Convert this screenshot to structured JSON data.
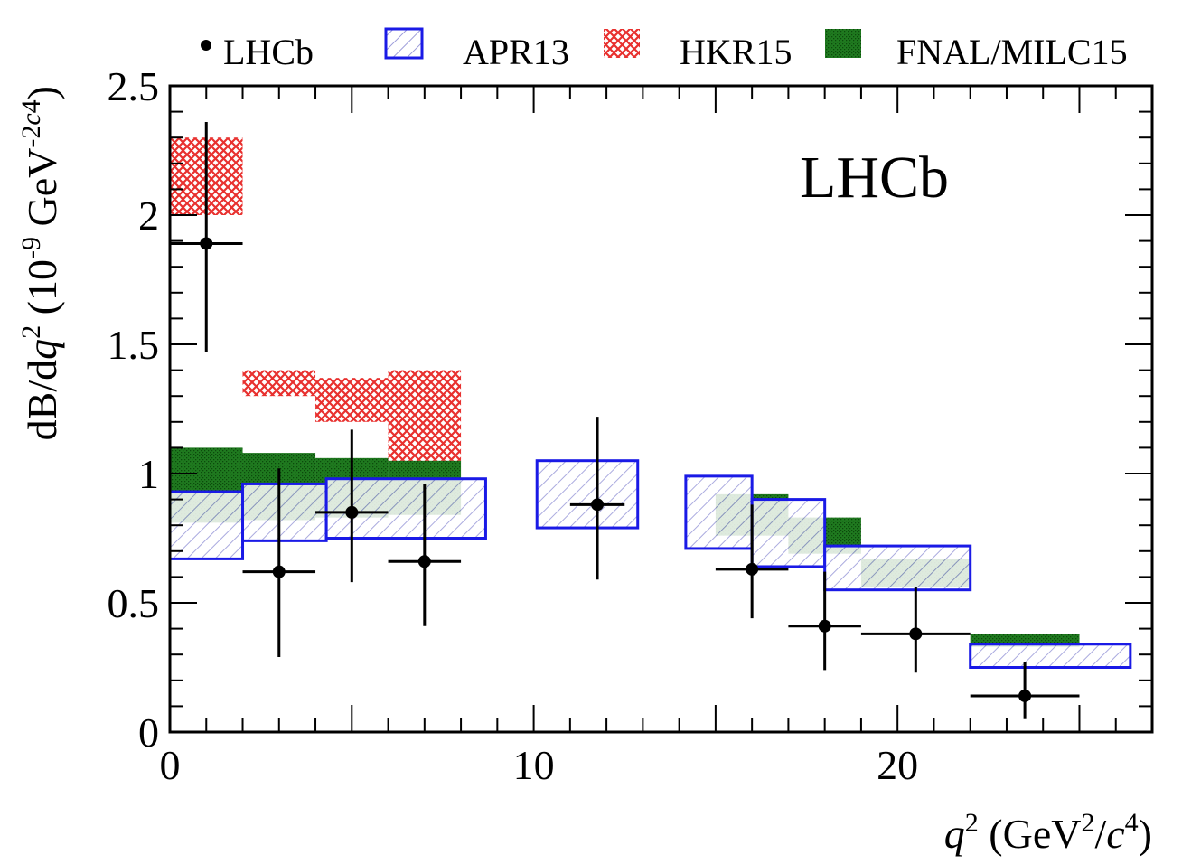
{
  "chart_data": {
    "type": "bar",
    "annotation": "LHCb",
    "xlim": [
      0,
      27
    ],
    "ylim": [
      0,
      2.5
    ],
    "x_ticks": [
      {
        "value": 0,
        "label": "0"
      },
      {
        "value": 10,
        "label": "10"
      },
      {
        "value": 20,
        "label": "20"
      }
    ],
    "y_ticks": [
      {
        "value": 0,
        "label": "0"
      },
      {
        "value": 0.5,
        "label": "0.5"
      },
      {
        "value": 1,
        "label": "1"
      },
      {
        "value": 1.5,
        "label": "1.5"
      },
      {
        "value": 2,
        "label": "2"
      },
      {
        "value": 2.5,
        "label": "2.5"
      }
    ],
    "xlabel": {
      "var": "q",
      "sup": "2",
      "open": " (GeV",
      "unit_sup": "2",
      "slash": "/",
      "c": "c",
      "c_sup": "4",
      "close": ")"
    },
    "ylabel": {
      "prefix": "dB/d",
      "var": "q",
      "sup": "2",
      "open": " (10",
      "exp": "-9",
      "gev": " GeV",
      "gev_exp": "-2",
      "c": "c",
      "c_sup": "4",
      "close": ")"
    },
    "legend": [
      {
        "name": "LHCb",
        "key": "lhcb"
      },
      {
        "name": "APR13",
        "key": "apr13"
      },
      {
        "name": "HKR15",
        "key": "hkr15"
      },
      {
        "name": "FNAL/MILC15",
        "key": "fnal"
      }
    ],
    "colors": {
      "apr13_line": "#1a1ae6",
      "apr13_hatch": "#9b9bd9",
      "hkr15": "#e8302e",
      "fnal": "#1f7a1f",
      "fnal_dot": "#0c4a0c",
      "lhcb": "#000000"
    },
    "series": [
      {
        "name": "FNAL/MILC15",
        "type": "band",
        "bins": [
          {
            "x0": 0,
            "x1": 2,
            "lo": 0.81,
            "hi": 1.1
          },
          {
            "x0": 2,
            "x1": 4,
            "lo": 0.82,
            "hi": 1.08
          },
          {
            "x0": 4,
            "x1": 6,
            "lo": 0.83,
            "hi": 1.06
          },
          {
            "x0": 6,
            "x1": 8,
            "lo": 0.84,
            "hi": 1.05
          },
          {
            "x0": 15,
            "x1": 17,
            "lo": 0.76,
            "hi": 0.92
          },
          {
            "x0": 17,
            "x1": 19,
            "lo": 0.69,
            "hi": 0.83
          },
          {
            "x0": 19,
            "x1": 22,
            "lo": 0.56,
            "hi": 0.67
          },
          {
            "x0": 22,
            "x1": 25,
            "lo": 0.33,
            "hi": 0.38
          }
        ]
      },
      {
        "name": "APR13",
        "type": "band",
        "bins": [
          {
            "x0": 0,
            "x1": 2,
            "lo": 0.67,
            "hi": 0.93
          },
          {
            "x0": 2,
            "x1": 4.3,
            "lo": 0.74,
            "hi": 0.96
          },
          {
            "x0": 4.3,
            "x1": 8.68,
            "lo": 0.75,
            "hi": 0.98
          },
          {
            "x0": 10.09,
            "x1": 12.86,
            "lo": 0.79,
            "hi": 1.05
          },
          {
            "x0": 14.18,
            "x1": 16,
            "lo": 0.71,
            "hi": 0.99
          },
          {
            "x0": 16,
            "x1": 18,
            "lo": 0.64,
            "hi": 0.9
          },
          {
            "x0": 18,
            "x1": 22,
            "lo": 0.55,
            "hi": 0.72
          },
          {
            "x0": 22,
            "x1": 26.4,
            "lo": 0.25,
            "hi": 0.34
          }
        ]
      },
      {
        "name": "HKR15",
        "type": "band",
        "bins": [
          {
            "x0": 0,
            "x1": 2,
            "lo": 2.0,
            "hi": 2.3
          },
          {
            "x0": 2,
            "x1": 4,
            "lo": 1.3,
            "hi": 1.4
          },
          {
            "x0": 4,
            "x1": 6,
            "lo": 1.2,
            "hi": 1.37
          },
          {
            "x0": 6,
            "x1": 8,
            "lo": 1.05,
            "hi": 1.4
          }
        ]
      },
      {
        "name": "LHCb",
        "type": "points",
        "points": [
          {
            "x": 1.0,
            "y": 1.89,
            "xlo": 0,
            "xhi": 2,
            "ylo": 1.47,
            "yhi": 2.36
          },
          {
            "x": 3.0,
            "y": 0.62,
            "xlo": 2,
            "xhi": 4,
            "ylo": 0.29,
            "yhi": 1.02
          },
          {
            "x": 5.0,
            "y": 0.85,
            "xlo": 4,
            "xhi": 6,
            "ylo": 0.58,
            "yhi": 1.17
          },
          {
            "x": 7.0,
            "y": 0.66,
            "xlo": 6,
            "xhi": 8,
            "ylo": 0.41,
            "yhi": 0.96
          },
          {
            "x": 11.75,
            "y": 0.88,
            "xlo": 11,
            "xhi": 12.5,
            "ylo": 0.59,
            "yhi": 1.22
          },
          {
            "x": 16.0,
            "y": 0.63,
            "xlo": 15,
            "xhi": 17,
            "ylo": 0.44,
            "yhi": 0.88
          },
          {
            "x": 18.0,
            "y": 0.41,
            "xlo": 17,
            "xhi": 19,
            "ylo": 0.24,
            "yhi": 0.62
          },
          {
            "x": 20.5,
            "y": 0.38,
            "xlo": 19,
            "xhi": 22,
            "ylo": 0.23,
            "yhi": 0.56
          },
          {
            "x": 23.5,
            "y": 0.14,
            "xlo": 22,
            "xhi": 25,
            "ylo": 0.05,
            "yhi": 0.27
          }
        ]
      }
    ]
  }
}
